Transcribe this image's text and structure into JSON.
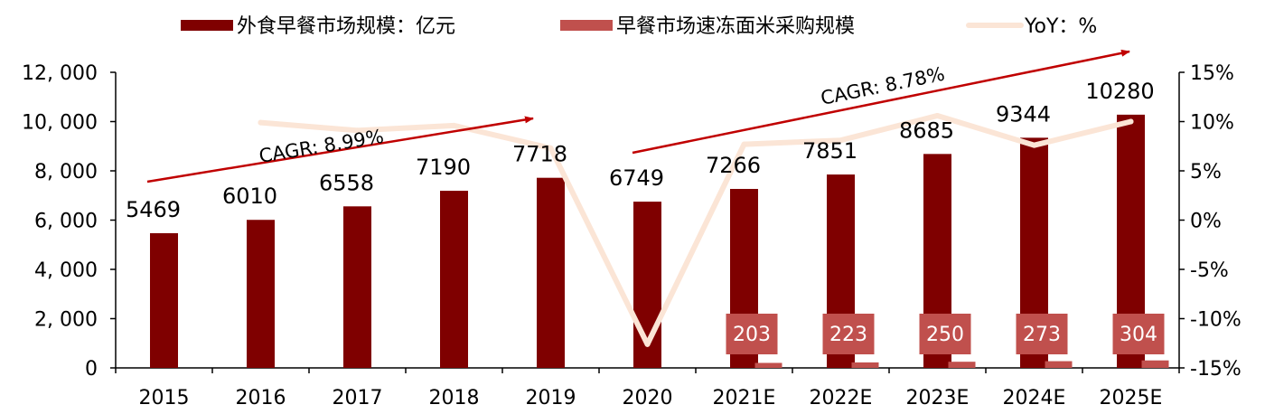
{
  "chart_data": {
    "type": "bar",
    "categories": [
      "2015",
      "2016",
      "2017",
      "2018",
      "2019",
      "2020",
      "2021E",
      "2022E",
      "2023E",
      "2024E",
      "2025E"
    ],
    "series": [
      {
        "name": "外食早餐市场规模：亿元",
        "type": "bar",
        "axis": "left",
        "color": "#7f0000",
        "values": [
          5469,
          6010,
          6558,
          7190,
          7718,
          6749,
          7266,
          7851,
          8685,
          9344,
          10280
        ]
      },
      {
        "name": "早餐市场速冻面米采购规模",
        "type": "bar",
        "axis": "left",
        "color": "#c0504d",
        "values": [
          null,
          null,
          null,
          null,
          null,
          null,
          203,
          223,
          250,
          273,
          304
        ]
      },
      {
        "name": "YoY：%",
        "type": "line",
        "axis": "right",
        "color": "#fbe5d6",
        "values": [
          null,
          9.9,
          9.1,
          9.6,
          7.3,
          -12.6,
          7.7,
          8.1,
          10.6,
          7.6,
          10.0
        ]
      }
    ],
    "left_axis": {
      "ylim": [
        0,
        12000
      ],
      "ticks": [
        "0",
        "2, 000",
        "4, 000",
        "6, 000",
        "8, 000",
        "10, 000",
        "12, 000"
      ]
    },
    "right_axis": {
      "ylim": [
        -15,
        15
      ],
      "ticks": [
        "-15%",
        "-10%",
        "-5%",
        "0%",
        "5%",
        "10%",
        "15%"
      ]
    },
    "annotations": [
      {
        "text": "CAGR: 8.99%",
        "from": "2015",
        "to": "2019"
      },
      {
        "text": "CAGR: 8.78%",
        "from": "2020",
        "to": "2025E"
      }
    ],
    "legend_position": "top",
    "grid": false
  }
}
